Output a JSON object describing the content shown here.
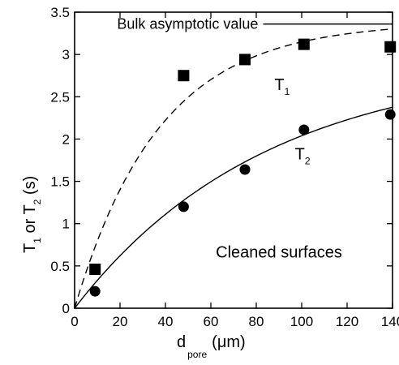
{
  "chart_data": {
    "type": "scatter",
    "title": "",
    "xlabel": {
      "main": "d",
      "sub": "pore",
      "unit": "(μm)"
    },
    "ylabel": {
      "part1": "T",
      "sub1": "1",
      "part2": " or T",
      "sub2": "2",
      "unit": " (s)"
    },
    "xlim": [
      0,
      140
    ],
    "ylim": [
      0,
      3.5
    ],
    "xticks": [
      0,
      20,
      40,
      60,
      80,
      100,
      120,
      140
    ],
    "yticks": [
      0,
      0.5,
      1,
      1.5,
      2,
      2.5,
      3,
      3.5
    ],
    "xtick_labels": [
      "0",
      "20",
      "40",
      "60",
      "80",
      "100",
      "120",
      "140"
    ],
    "ytick_labels": [
      "0",
      "0.5",
      "1",
      "1.5",
      "2",
      "2.5",
      "3",
      "3.5"
    ],
    "grid": false,
    "series": [
      {
        "name": "T1",
        "marker": "square",
        "fit_style": "dashed",
        "x": [
          9,
          48,
          75,
          101,
          139
        ],
        "y": [
          0.46,
          2.75,
          2.94,
          3.12,
          3.09
        ]
      },
      {
        "name": "T2",
        "marker": "circle",
        "fit_style": "solid",
        "x": [
          9,
          48,
          75,
          101,
          139
        ],
        "y": [
          0.2,
          1.2,
          1.64,
          2.11,
          2.29
        ]
      }
    ],
    "fits": [
      {
        "series": "T1",
        "style": "dashed",
        "model": "asymptotic",
        "asymptote": 3.38,
        "lambda": 0.0268
      },
      {
        "series": "T2",
        "style": "solid",
        "model": "asymptotic",
        "asymptote": 2.93,
        "lambda": 0.0119
      }
    ],
    "asymptote": {
      "y": 3.36,
      "label": "Bulk asymptotic value",
      "x_start": 83,
      "x_end": 140
    },
    "annotations": {
      "t1_label": {
        "main": "T",
        "sub": "1",
        "x": 88,
        "y": 2.58
      },
      "t2_label": {
        "main": "T",
        "sub": "2",
        "x": 97,
        "y": 1.76
      },
      "condition": {
        "text": "Cleaned surfaces",
        "x": 90,
        "y": 0.6
      }
    },
    "colors": {
      "marks": "#000000",
      "background": "#ffffff"
    }
  }
}
